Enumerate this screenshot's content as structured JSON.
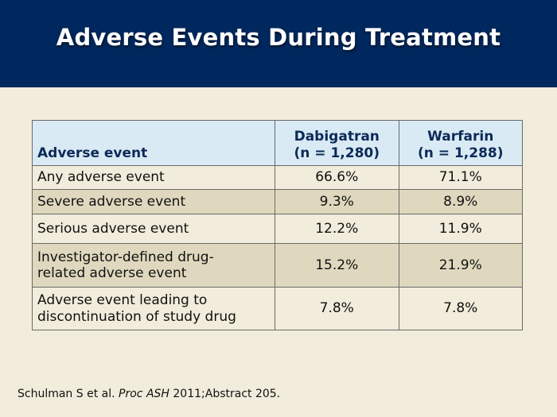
{
  "slide": {
    "title": "Adverse Events During Treatment"
  },
  "table": {
    "headers": {
      "event": "Adverse event",
      "dabigatran_line1": "Dabigatran",
      "dabigatran_line2": "(n = 1,280)",
      "warfarin_line1": "Warfarin",
      "warfarin_line2": "(n = 1,288)"
    },
    "rows": [
      {
        "event_line1": "Any adverse event",
        "event_line2": "",
        "dabigatran": "66.6%",
        "warfarin": "71.1%"
      },
      {
        "event_line1": "Severe adverse event",
        "event_line2": "",
        "dabigatran": "9.3%",
        "warfarin": "8.9%"
      },
      {
        "event_line1": "Serious adverse event",
        "event_line2": "",
        "dabigatran": "12.2%",
        "warfarin": "11.9%"
      },
      {
        "event_line1": "Investigator-defined drug-",
        "event_line2": "related adverse event",
        "dabigatran": "15.2%",
        "warfarin": "21.9%"
      },
      {
        "event_line1": "Adverse event leading to",
        "event_line2": "discontinuation of study drug",
        "dabigatran": "7.8%",
        "warfarin": "7.8%"
      }
    ]
  },
  "citation": {
    "authors": "Schulman S et al.",
    "journal": "Proc ASH",
    "details": "2011;Abstract 205."
  },
  "colors": {
    "title_band": "#00285e",
    "background": "#f1ecdb",
    "header_fill": "#d9eaf4",
    "alt_row_fill": "#dfd8be"
  }
}
